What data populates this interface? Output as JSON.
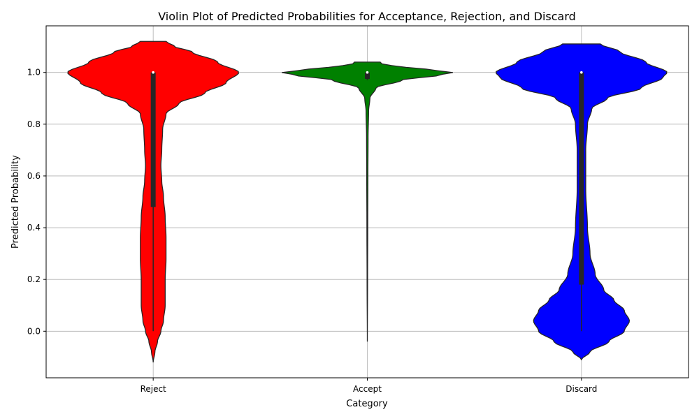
{
  "chart_data": {
    "type": "violin",
    "title": "Violin Plot of Predicted Probabilities for Acceptance, Rejection, and Discard",
    "xlabel": "Category",
    "ylabel": "Predicted Probability",
    "categories": [
      "Reject",
      "Accept",
      "Discard"
    ],
    "ylim": [
      -0.18,
      1.18
    ],
    "yticks": [
      0.0,
      0.2,
      0.4,
      0.6,
      0.8,
      1.0
    ],
    "ytick_labels": [
      "0.0",
      "0.2",
      "0.4",
      "0.6",
      "0.8",
      "1.0"
    ],
    "grid": true,
    "series": [
      {
        "category": "Reject",
        "color": "#ff0000",
        "support": [
          -0.12,
          1.12
        ],
        "density_profile": [
          [
            -0.12,
            0.0
          ],
          [
            -0.08,
            0.02
          ],
          [
            -0.04,
            0.05
          ],
          [
            0.0,
            0.09
          ],
          [
            0.04,
            0.12
          ],
          [
            0.1,
            0.14
          ],
          [
            0.2,
            0.14
          ],
          [
            0.28,
            0.15
          ],
          [
            0.36,
            0.15
          ],
          [
            0.44,
            0.14
          ],
          [
            0.52,
            0.12
          ],
          [
            0.58,
            0.1
          ],
          [
            0.64,
            0.09
          ],
          [
            0.7,
            0.1
          ],
          [
            0.78,
            0.11
          ],
          [
            0.84,
            0.15
          ],
          [
            0.88,
            0.3
          ],
          [
            0.92,
            0.6
          ],
          [
            0.96,
            0.85
          ],
          [
            1.0,
            1.0
          ],
          [
            1.04,
            0.75
          ],
          [
            1.08,
            0.45
          ],
          [
            1.1,
            0.25
          ],
          [
            1.12,
            0.15
          ]
        ],
        "box": {
          "q1": 0.48,
          "median": 1.0,
          "q3": 1.0,
          "whisker_low": 0.0,
          "whisker_high": 1.0
        }
      },
      {
        "category": "Accept",
        "color": "#008000",
        "support": [
          -0.04,
          1.04
        ],
        "density_profile": [
          [
            -0.04,
            0.0
          ],
          [
            0.2,
            0.003
          ],
          [
            0.4,
            0.005
          ],
          [
            0.6,
            0.007
          ],
          [
            0.75,
            0.009
          ],
          [
            0.85,
            0.015
          ],
          [
            0.9,
            0.03
          ],
          [
            0.94,
            0.1
          ],
          [
            0.97,
            0.4
          ],
          [
            0.99,
            0.85
          ],
          [
            1.0,
            1.0
          ],
          [
            1.01,
            0.75
          ],
          [
            1.02,
            0.45
          ],
          [
            1.03,
            0.22
          ],
          [
            1.035,
            0.15
          ]
        ],
        "box": {
          "q1": 0.975,
          "median": 1.0,
          "q3": 1.0,
          "whisker_low": 0.97,
          "whisker_high": 1.0
        }
      },
      {
        "category": "Discard",
        "color": "#0000ff",
        "support": [
          -0.11,
          1.11
        ],
        "density_profile": [
          [
            -0.11,
            0.0
          ],
          [
            -0.08,
            0.1
          ],
          [
            -0.04,
            0.32
          ],
          [
            0.0,
            0.5
          ],
          [
            0.04,
            0.56
          ],
          [
            0.08,
            0.5
          ],
          [
            0.12,
            0.38
          ],
          [
            0.16,
            0.26
          ],
          [
            0.22,
            0.16
          ],
          [
            0.3,
            0.1
          ],
          [
            0.4,
            0.07
          ],
          [
            0.55,
            0.05
          ],
          [
            0.7,
            0.05
          ],
          [
            0.8,
            0.07
          ],
          [
            0.86,
            0.12
          ],
          [
            0.9,
            0.3
          ],
          [
            0.94,
            0.7
          ],
          [
            0.98,
            0.95
          ],
          [
            1.0,
            1.0
          ],
          [
            1.04,
            0.75
          ],
          [
            1.08,
            0.45
          ],
          [
            1.11,
            0.22
          ]
        ],
        "box": {
          "q1": 0.18,
          "median": 1.0,
          "q3": 1.0,
          "whisker_low": 0.0,
          "whisker_high": 1.0
        }
      }
    ]
  }
}
